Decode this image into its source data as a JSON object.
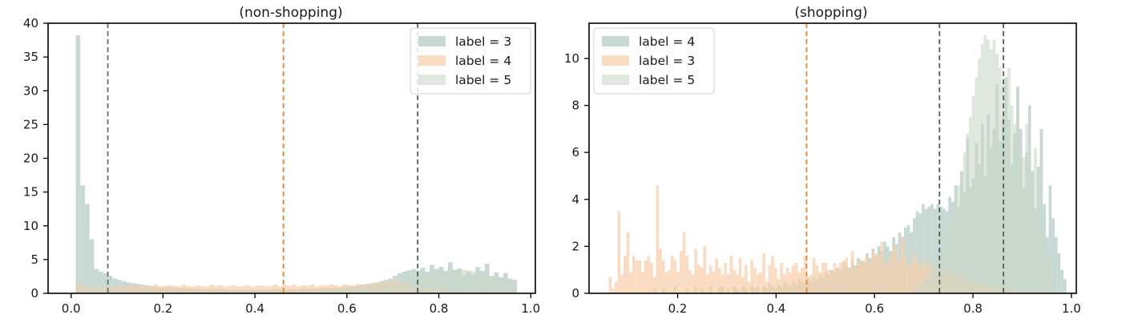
{
  "chart_data": [
    {
      "type": "bar",
      "chart_kind": "histogram",
      "title_visible_line": "(non-shopping)",
      "xlim": [
        -0.05,
        1.01
      ],
      "ylim": [
        0,
        40
      ],
      "xticks": [
        0.0,
        0.2,
        0.4,
        0.6,
        0.8,
        1.0
      ],
      "xtick_labels": [
        "0.0",
        "0.2",
        "0.4",
        "0.6",
        "0.8",
        "1.0"
      ],
      "yticks": [
        0,
        5,
        10,
        15,
        20,
        25,
        30,
        35,
        40
      ],
      "ytick_labels": [
        "0",
        "5",
        "10",
        "15",
        "20",
        "25",
        "30",
        "35",
        "40"
      ],
      "legend_placement": "upper right",
      "vlines": [
        {
          "x": 0.08,
          "color": "#6b6b6b",
          "style": "dashed"
        },
        {
          "x": 0.462,
          "color": "#e8822e",
          "style": "dashed"
        },
        {
          "x": 0.754,
          "color": "#4e5f58",
          "style": "dashed"
        }
      ],
      "series": [
        {
          "name": "label = 3",
          "color": "#b7cec5",
          "bin_start": 0.01,
          "bin_width": 0.01,
          "values": [
            38.2,
            16,
            13.2,
            8,
            3.6,
            3.2,
            3,
            2.6,
            2.2,
            2,
            1.8,
            1.6,
            1.5,
            1.4,
            1.3,
            1.2,
            1.1,
            1,
            1,
            0.9,
            0.9,
            0.8,
            0.8,
            0.8,
            0.7,
            0.7,
            0.7,
            0.6,
            0.6,
            0.6,
            0.6,
            0.6,
            0.6,
            0.5,
            0.5,
            0.5,
            0.5,
            0.5,
            0.5,
            0.5,
            0.5,
            0.5,
            0.6,
            0.6,
            0.6,
            0.6,
            0.6,
            0.6,
            0.6,
            0.7,
            0.7,
            0.7,
            0.7,
            0.8,
            0.8,
            0.8,
            0.9,
            0.9,
            1,
            1,
            1.1,
            1.2,
            1.3,
            1.4,
            1.5,
            1.6,
            1.8,
            2,
            2.2,
            2.6,
            3,
            3.2,
            3.4,
            3.6,
            3.4,
            3.8,
            3.2,
            4.2,
            3.6,
            3.9,
            3.3,
            4.6,
            3.5,
            3.7,
            2.7,
            3.2,
            2.8,
            3.9,
            3.3,
            4.4,
            2.5,
            3.1,
            2.4,
            3.0,
            2.2,
            2.0
          ]
        },
        {
          "name": "label = 4",
          "color": "#f6cfa9",
          "bin_start": 0.01,
          "bin_width": 0.01,
          "values": [
            1.4,
            1.1,
            1,
            0.9,
            0.8,
            0.8,
            0.9,
            0.8,
            0.9,
            1,
            0.9,
            1.1,
            1,
            1,
            1.2,
            1,
            1.1,
            1.3,
            1,
            1.1,
            1.2,
            1.1,
            1,
            1.3,
            1.1,
            1.0,
            1.2,
            1.1,
            1,
            1.3,
            1.1,
            1.2,
            1.0,
            1.1,
            1.2,
            1,
            1.1,
            1.2,
            1,
            1.1,
            1.2,
            1.0,
            1.1,
            1.3,
            1,
            1.2,
            1.1,
            1.3,
            1.0,
            1.2,
            1.1,
            1.3,
            1.0,
            1.2,
            1.1,
            1.3,
            1.2,
            1.0,
            1.3,
            1.2,
            1.1,
            1.4,
            1.2,
            1.3,
            1.5,
            1.4,
            1.6,
            1.8,
            1.6,
            2.0,
            1.8,
            1.6,
            1.4,
            1.2,
            1.0,
            0.9,
            0.8,
            0.7,
            0.6,
            0.6,
            0.5,
            0.5,
            0.4,
            0.4,
            0.3,
            0.3,
            0.3,
            0.2,
            0.2,
            0.2,
            0.2,
            0.1,
            0.1,
            0.1,
            0.1,
            0.1
          ]
        },
        {
          "name": "label = 5",
          "color": "#c9d7ca",
          "bin_start": 0.01,
          "bin_width": 0.01,
          "values": [
            1.0,
            0.8,
            0.7,
            0.6,
            0.6,
            0.5,
            0.5,
            0.5,
            0.4,
            0.4,
            0.4,
            0.4,
            0.4,
            0.3,
            0.3,
            0.3,
            0.3,
            0.3,
            0.3,
            0.3,
            0.3,
            0.3,
            0.3,
            0.3,
            0.3,
            0.3,
            0.3,
            0.3,
            0.3,
            0.3,
            0.3,
            0.3,
            0.3,
            0.3,
            0.3,
            0.3,
            0.3,
            0.3,
            0.3,
            0.3,
            0.3,
            0.3,
            0.3,
            0.3,
            0.3,
            0.3,
            0.3,
            0.3,
            0.4,
            0.4,
            0.4,
            0.4,
            0.4,
            0.5,
            0.5,
            0.5,
            0.6,
            0.6,
            0.6,
            0.7,
            0.7,
            0.8,
            0.8,
            0.9,
            1.0,
            1.1,
            1.2,
            1.3,
            1.4,
            1.5,
            1.6,
            1.8,
            2.0,
            2.2,
            2.4,
            2.6,
            2.8,
            3.0,
            3.1,
            3.2,
            3.3,
            3.4,
            3.4,
            3.5,
            3.5,
            3.4,
            3.3,
            3.2,
            3.0,
            2.8,
            2.6,
            2.4,
            2.2,
            2.0,
            1.8,
            1.6
          ]
        }
      ]
    },
    {
      "type": "bar",
      "chart_kind": "histogram",
      "title_visible_line": "(shopping)",
      "xlim": [
        0.02,
        1.01
      ],
      "ylim": [
        0,
        11.5
      ],
      "xticks": [
        0.2,
        0.4,
        0.6,
        0.8,
        1.0
      ],
      "xtick_labels": [
        "0.2",
        "0.4",
        "0.6",
        "0.8",
        "1.0"
      ],
      "yticks": [
        0,
        2,
        4,
        6,
        8,
        10
      ],
      "ytick_labels": [
        "0",
        "2",
        "4",
        "6",
        "8",
        "10"
      ],
      "legend_placement": "upper left",
      "vlines": [
        {
          "x": 0.462,
          "color": "#e8822e",
          "style": "dashed"
        },
        {
          "x": 0.732,
          "color": "#4e5f58",
          "style": "dashed"
        },
        {
          "x": 0.862,
          "color": "#4e5f58",
          "style": "dashed"
        }
      ],
      "series": [
        {
          "name": "label = 4",
          "color": "#b7cec5",
          "bin_start": 0.06,
          "bin_width": 0.006,
          "values": [
            0,
            0,
            0,
            0,
            0,
            0,
            0,
            0,
            0,
            0,
            0,
            0,
            0,
            0,
            0,
            0.2,
            0,
            0,
            0.2,
            0,
            0,
            0,
            0.3,
            0,
            0,
            0,
            0.2,
            0,
            0,
            0.3,
            0,
            0.2,
            0,
            0,
            0.3,
            0,
            0,
            0.2,
            0.3,
            0,
            0.2,
            0,
            0.3,
            0.2,
            0,
            0.3,
            0.2,
            0,
            0.3,
            0.2,
            0.3,
            0,
            0.3,
            0.2,
            0.4,
            0.3,
            0.2,
            0.4,
            0.3,
            0.5,
            0.4,
            0.3,
            0.5,
            0.4,
            0.6,
            0.5,
            0.4,
            0.7,
            0.5,
            0.7,
            0.6,
            0.8,
            0.7,
            0.9,
            0.8,
            1.0,
            0.9,
            1.1,
            1.0,
            1.3,
            1.2,
            1.1,
            1.4,
            1.2,
            1.5,
            1.4,
            1.3,
            1.7,
            1.5,
            1.9,
            1.6,
            2.0,
            1.8,
            2.2,
            2.0,
            1.8,
            2.4,
            2.1,
            2.6,
            2.4,
            2.8,
            2.9,
            2.6,
            3.2,
            3.5,
            3.4,
            3.8,
            3.6,
            3.7,
            3.8,
            3.6,
            3.8,
            3.7,
            3.6,
            3.5,
            4.1,
            3.9,
            4.6,
            3.7,
            5.2,
            4.3,
            6.6,
            4.5,
            4.9,
            6.4,
            5.5,
            7.2,
            5.0,
            7.6,
            6.2,
            7.0,
            8.9,
            6.5,
            7.5,
            9.2,
            7.4,
            5.5,
            6.8,
            8.8,
            7.0,
            4.5,
            6.0,
            8.0,
            5.2,
            3.6,
            5.4,
            7.0,
            3.8,
            2.4,
            4.6,
            3.2,
            2.4,
            1.7,
            1.0,
            0.6
          ]
        },
        {
          "name": "label = 3",
          "color": "#f6cfa9",
          "bin_start": 0.06,
          "bin_width": 0.006,
          "values": [
            0.7,
            0.2,
            0.5,
            3.5,
            0.8,
            1.6,
            2.6,
            0.9,
            1.6,
            1.4,
            1.4,
            0.9,
            1.4,
            1.6,
            1.3,
            0.7,
            4.6,
            1.9,
            1.4,
            0.9,
            1.0,
            1.6,
            1.4,
            0.9,
            1.8,
            2.6,
            1.6,
            1.0,
            0.8,
            1.9,
            1.2,
            1.1,
            2.0,
            0.8,
            1.2,
            0.9,
            1.5,
            1.1,
            0.8,
            1.3,
            0.8,
            1.6,
            1.0,
            0.8,
            1.5,
            0.7,
            1.2,
            0.5,
            1.4,
            1.1,
            0.8,
            0.9,
            1.7,
            0.5,
            1.2,
            1.6,
            1.1,
            0.6,
            1.3,
            0.8,
            1.1,
            0.9,
            1.2,
            1.3,
            0.9,
            1.1,
            1.6,
            0.7,
            0.8,
            1.5,
            1.2,
            0.9,
            1.3,
            1.3,
            1.0,
            0.9,
            1.3,
            1.1,
            1.3,
            1.4,
            1.5,
            1.0,
            1.8,
            1.1,
            1.4,
            1.3,
            1.4,
            1.6,
            1.3,
            1.8,
            1.7,
            1.6,
            2.2,
            1.4,
            1.2,
            1.6,
            2.1,
            1.8,
            1.4,
            2.4,
            1.6,
            1.2,
            1.3,
            1.7,
            1.4,
            1.1,
            1.4,
            1.2,
            1.3,
            1.0,
            1.2,
            0.8,
            1.1,
            0.9,
            1.0,
            1.1,
            0.8,
            0.9,
            0.7,
            0.8,
            0.6,
            0.7,
            0.5,
            0.6,
            0.5,
            0.4,
            0.5,
            0.3,
            0.4,
            0.3,
            0.3,
            0.2,
            0.3,
            0.2,
            0.2,
            0.2,
            0.1,
            0.2,
            0.1,
            0.1,
            0.1,
            0.1,
            0.1,
            0.1,
            0.1,
            0.1,
            0,
            0,
            0,
            0,
            0,
            0,
            0,
            0,
            0
          ]
        },
        {
          "name": "label = 5",
          "color": "#c9d7ca",
          "bin_start": 0.06,
          "bin_width": 0.006,
          "values": [
            0,
            0,
            0,
            0,
            0,
            0,
            0,
            0,
            0,
            0,
            0,
            0,
            0,
            0,
            0,
            0,
            0,
            0,
            0,
            0,
            0,
            0,
            0,
            0,
            0,
            0,
            0,
            0,
            0,
            0,
            0,
            0,
            0,
            0,
            0,
            0,
            0,
            0,
            0,
            0,
            0,
            0,
            0,
            0,
            0,
            0,
            0,
            0,
            0,
            0,
            0,
            0,
            0,
            0,
            0,
            0,
            0,
            0,
            0,
            0,
            0,
            0,
            0,
            0,
            0,
            0,
            0,
            0,
            0,
            0,
            0,
            0,
            0,
            0,
            0,
            0,
            0,
            0,
            0,
            0,
            0,
            0,
            0,
            0,
            0,
            0,
            0,
            0,
            0,
            0,
            0,
            0,
            0,
            0,
            0,
            0,
            0,
            0,
            0,
            0,
            0,
            0,
            0,
            0.2,
            0.3,
            0.4,
            0.5,
            0.6,
            0.8,
            1.0,
            1.2,
            1.5,
            1.8,
            2.2,
            2.6,
            3.0,
            3.5,
            4.0,
            4.6,
            5.2,
            6.0,
            6.8,
            7.5,
            8.4,
            9.2,
            10.0,
            10.6,
            11.0,
            10.8,
            10.4,
            10.8,
            10.2,
            9.6,
            9.0,
            8.4,
            9.6,
            8.0,
            7.2,
            8.6,
            6.4,
            5.8,
            7.2,
            5.0,
            4.4,
            6.2,
            3.6,
            3.0,
            2.4,
            1.8,
            1.2,
            0.6
          ]
        }
      ]
    }
  ]
}
